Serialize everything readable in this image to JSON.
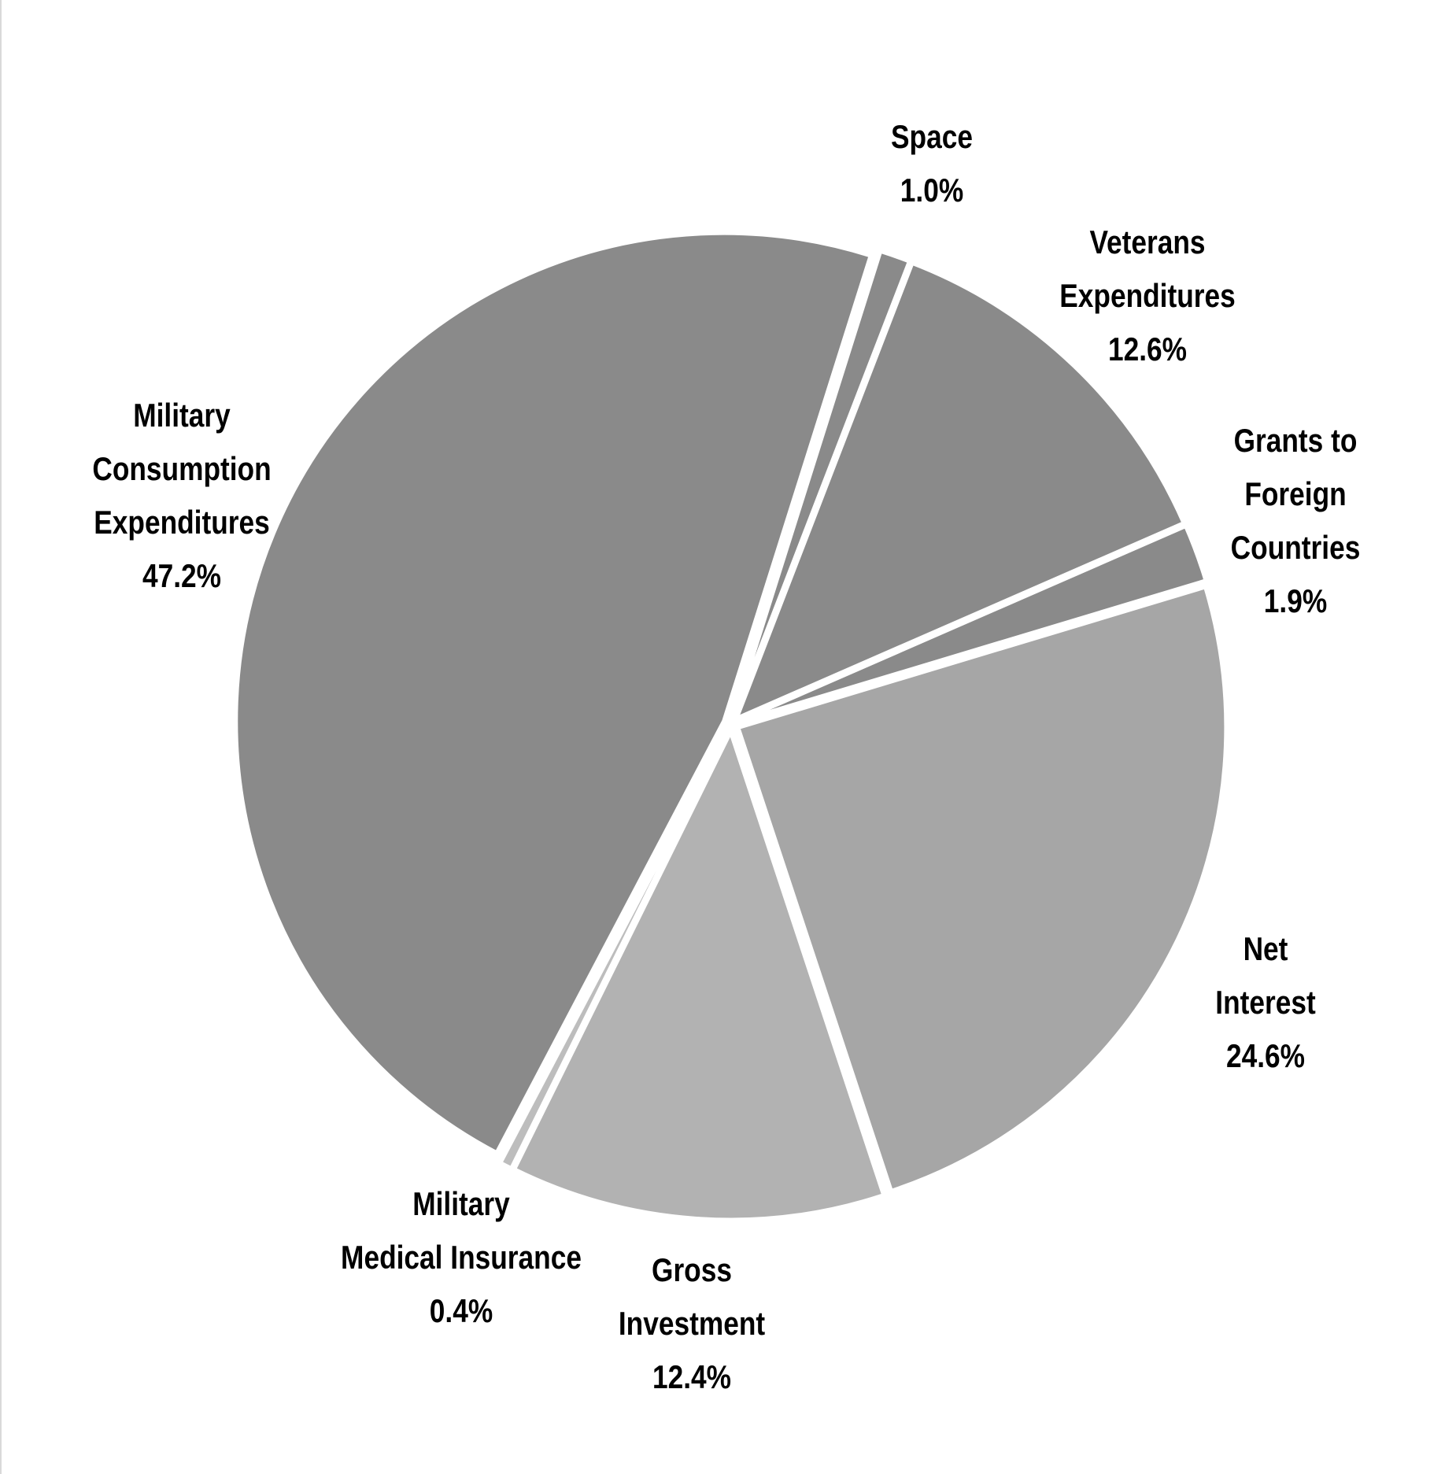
{
  "chart_data": {
    "type": "pie",
    "slices": [
      {
        "label_lines": [
          "Space"
        ],
        "value_label": "1.0%",
        "value": 1.0,
        "color": "#8a8a8a"
      },
      {
        "label_lines": [
          "Veterans",
          "Expenditures"
        ],
        "value_label": "12.6%",
        "value": 12.6,
        "color": "#8a8a8a"
      },
      {
        "label_lines": [
          "Grants to",
          "Foreign",
          "Countries"
        ],
        "value_label": "1.9%",
        "value": 1.9,
        "color": "#8a8a8a"
      },
      {
        "label_lines": [
          "Net",
          "Interest"
        ],
        "value_label": "24.6%",
        "value": 24.6,
        "color": "#a6a6a6"
      },
      {
        "label_lines": [
          "Gross",
          "Investment"
        ],
        "value_label": "12.4%",
        "value": 12.4,
        "color": "#b2b2b2"
      },
      {
        "label_lines": [
          "Military",
          "Medical Insurance"
        ],
        "value_label": "0.4%",
        "value": 0.4,
        "color": "#bdbdbd"
      },
      {
        "label_lines": [
          "Military",
          "Consumption",
          "Expenditures"
        ],
        "value_label": "47.2%",
        "value": 47.2,
        "color": "#8a8a8a"
      }
    ],
    "slice_border_color": "#ffffff",
    "legend": "none"
  }
}
